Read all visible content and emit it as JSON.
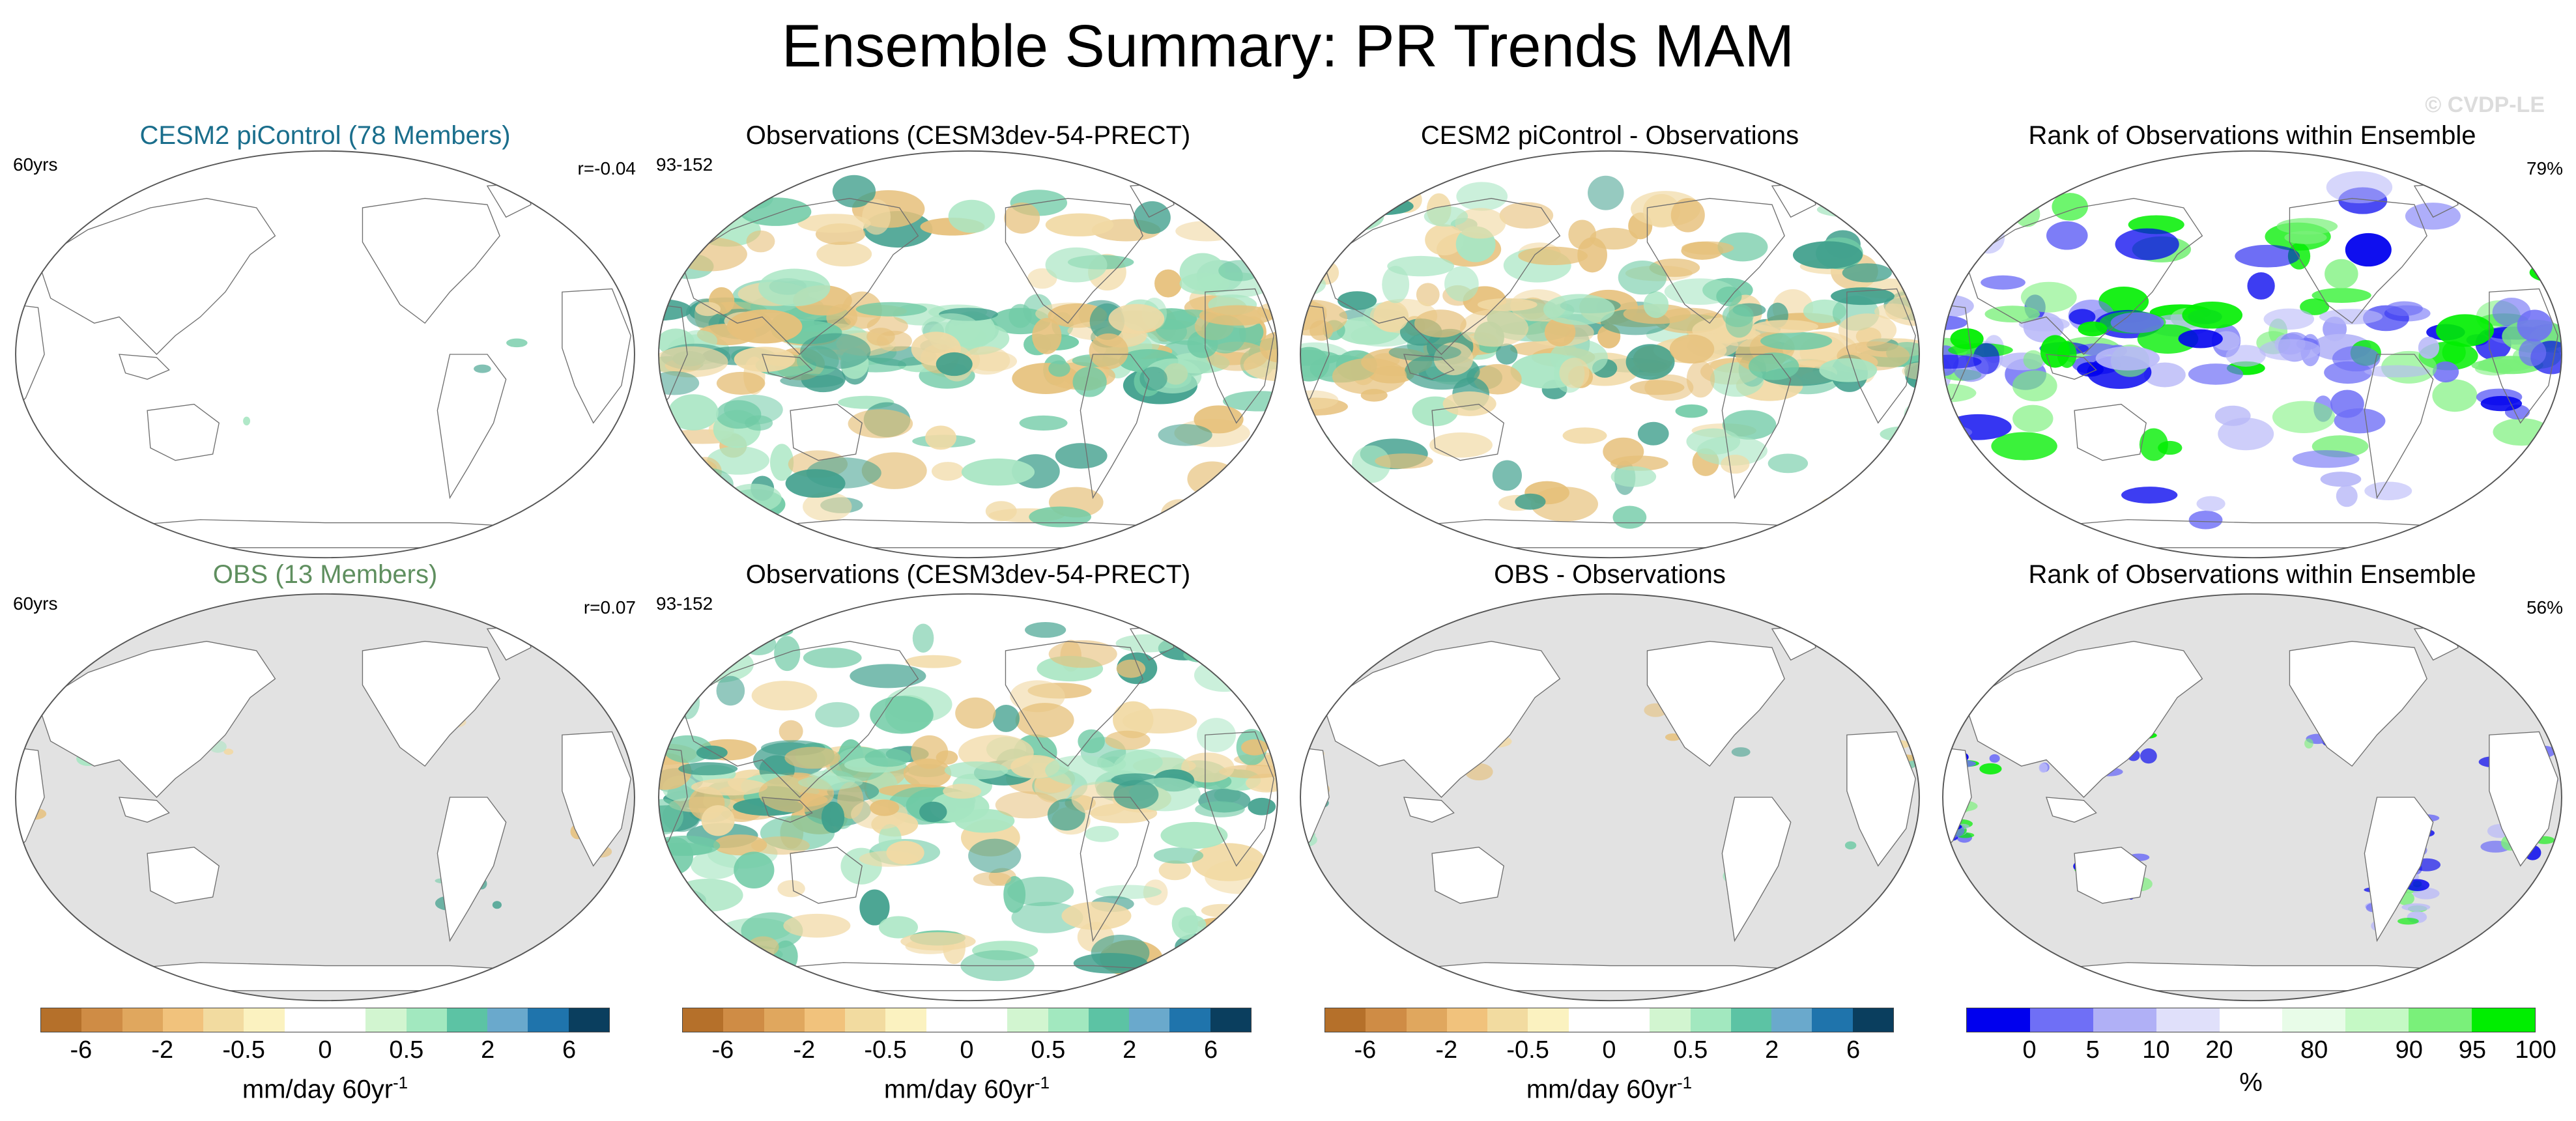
{
  "figure": {
    "title": "Ensemble Summary: PR Trends MAM",
    "watermark": "© CVDP-LE"
  },
  "title_colors": {
    "cesm": "#1a6e8c",
    "obs": "#5f8f5f",
    "default": "#000000"
  },
  "panels": [
    {
      "id": "p00",
      "title": "CESM2 piControl (78 Members)",
      "title_color": "cesm",
      "left_label": "60yrs",
      "right_label": "r=-0.04",
      "background": "white",
      "pattern": "sparse"
    },
    {
      "id": "p01",
      "title": "Observations (CESM3dev-54-PRECT)",
      "title_color": "default",
      "left_label": "93-152",
      "right_label": "",
      "background": "white",
      "pattern": "trend"
    },
    {
      "id": "p02",
      "title": "CESM2 piControl - Observations",
      "title_color": "default",
      "left_label": "",
      "right_label": "",
      "background": "white",
      "pattern": "trend"
    },
    {
      "id": "p03",
      "title": "Rank of Observations within Ensemble",
      "title_color": "default",
      "left_label": "",
      "right_label": "79%",
      "background": "white",
      "pattern": "rank"
    },
    {
      "id": "p10",
      "title": "OBS (13 Members)",
      "title_color": "obs",
      "left_label": "60yrs",
      "right_label": "r=0.07",
      "background": "gray",
      "pattern": "land-sparse"
    },
    {
      "id": "p11",
      "title": "Observations (CESM3dev-54-PRECT)",
      "title_color": "default",
      "left_label": "93-152",
      "right_label": "",
      "background": "white",
      "pattern": "trend"
    },
    {
      "id": "p12",
      "title": "OBS - Observations",
      "title_color": "default",
      "left_label": "",
      "right_label": "",
      "background": "gray",
      "pattern": "land-trend"
    },
    {
      "id": "p13",
      "title": "Rank of Observations within Ensemble",
      "title_color": "default",
      "left_label": "",
      "right_label": "56%",
      "background": "gray",
      "pattern": "land-rank"
    }
  ],
  "colorbars": [
    {
      "id": "cb0",
      "colors": [
        "#b5702a",
        "#cf8c45",
        "#e0a75e",
        "#f1c27c",
        "#f2dba0",
        "#fbf2c0",
        "#ffffff",
        "#ffffff",
        "#d2f5d0",
        "#a2e8bf",
        "#5cc3a4",
        "#6aa9cc",
        "#1f74ac",
        "#0a3e5e"
      ],
      "ticks": [
        {
          "label": "-6",
          "boundary": 1
        },
        {
          "label": "-2",
          "boundary": 3
        },
        {
          "label": "-0.5",
          "boundary": 5
        },
        {
          "label": "0",
          "boundary": 7
        },
        {
          "label": "0.5",
          "boundary": 9
        },
        {
          "label": "2",
          "boundary": 11
        },
        {
          "label": "6",
          "boundary": 13
        }
      ],
      "label": "mm/day 60yr",
      "label_sup": "-1"
    },
    {
      "id": "cb1",
      "colors": [
        "#b5702a",
        "#cf8c45",
        "#e0a75e",
        "#f1c27c",
        "#f2dba0",
        "#fbf2c0",
        "#ffffff",
        "#ffffff",
        "#d2f5d0",
        "#a2e8bf",
        "#5cc3a4",
        "#6aa9cc",
        "#1f74ac",
        "#0a3e5e"
      ],
      "ticks": [
        {
          "label": "-6",
          "boundary": 1
        },
        {
          "label": "-2",
          "boundary": 3
        },
        {
          "label": "-0.5",
          "boundary": 5
        },
        {
          "label": "0",
          "boundary": 7
        },
        {
          "label": "0.5",
          "boundary": 9
        },
        {
          "label": "2",
          "boundary": 11
        },
        {
          "label": "6",
          "boundary": 13
        }
      ],
      "label": "mm/day 60yr",
      "label_sup": "-1"
    },
    {
      "id": "cb2",
      "colors": [
        "#b5702a",
        "#cf8c45",
        "#e0a75e",
        "#f1c27c",
        "#f2dba0",
        "#fbf2c0",
        "#ffffff",
        "#ffffff",
        "#d2f5d0",
        "#a2e8bf",
        "#5cc3a4",
        "#6aa9cc",
        "#1f74ac",
        "#0a3e5e"
      ],
      "ticks": [
        {
          "label": "-6",
          "boundary": 1
        },
        {
          "label": "-2",
          "boundary": 3
        },
        {
          "label": "-0.5",
          "boundary": 5
        },
        {
          "label": "0",
          "boundary": 7
        },
        {
          "label": "0.5",
          "boundary": 9
        },
        {
          "label": "2",
          "boundary": 11
        },
        {
          "label": "6",
          "boundary": 13
        }
      ],
      "label": "mm/day 60yr",
      "label_sup": "-1"
    },
    {
      "id": "cb3",
      "colors": [
        "#0000ee",
        "#6f6ff6",
        "#b0b0f6",
        "#e0e0fa",
        "#ffffff",
        "#e8fce8",
        "#c5f9c5",
        "#7af07a",
        "#00ee00"
      ],
      "ticks": [
        {
          "label": "0",
          "boundary": 1
        },
        {
          "label": "5",
          "boundary": 2
        },
        {
          "label": "10",
          "boundary": 3
        },
        {
          "label": "20",
          "boundary": 4
        },
        {
          "label": "80",
          "boundary": 5.5
        },
        {
          "label": "90",
          "boundary": 7
        },
        {
          "label": "95",
          "boundary": 8
        },
        {
          "label": "100",
          "boundary": 9
        }
      ],
      "label": "%",
      "label_sup": ""
    }
  ]
}
